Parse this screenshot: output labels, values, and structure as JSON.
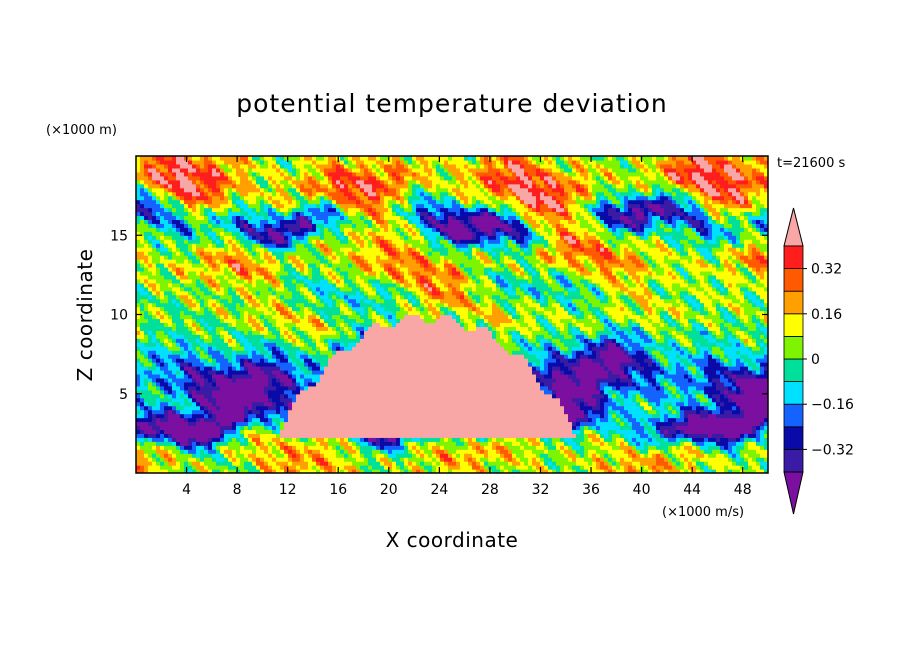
{
  "chart_data": {
    "type": "heatmap",
    "title": "potential temperature deviation",
    "xlabel": "X coordinate",
    "ylabel": "Z coordinate",
    "x_unit": "(×1000 m/s)",
    "y_unit": "(×1000 m)",
    "time_label": "t=21600 s",
    "xlim": [
      0,
      50
    ],
    "ylim": [
      0,
      20
    ],
    "x_ticks": [
      4,
      8,
      12,
      16,
      20,
      24,
      28,
      32,
      36,
      40,
      44,
      48
    ],
    "y_ticks": [
      5,
      10,
      15
    ],
    "colorbar": {
      "levels": [
        -0.4,
        -0.32,
        -0.24,
        -0.16,
        -0.08,
        0,
        0.08,
        0.16,
        0.24,
        0.32,
        0.4
      ],
      "tick_values": [
        -0.32,
        -0.16,
        0,
        0.16,
        0.32
      ],
      "tick_labels": [
        "−0.32",
        "−0.16",
        "0",
        "0.16",
        "0.32"
      ],
      "colors": [
        "#7b0fa0",
        "#3a1ba6",
        "#0a0aa8",
        "#1463ff",
        "#00e0ff",
        "#00e09a",
        "#7ff400",
        "#ffff00",
        "#ffa000",
        "#ff5a00",
        "#ff1e1e",
        "#f8a6a6"
      ]
    },
    "cloud": {
      "value": "> 0.4",
      "x_range": [
        11,
        35
      ],
      "z_range": [
        2.3,
        9.8
      ],
      "top_x": 23,
      "color": "#f8a6a6"
    },
    "field_bands": [
      {
        "z_center": 18.0,
        "z_width": 2.2,
        "amplitude": 0.35
      },
      {
        "z_center": 16.0,
        "z_width": 1.2,
        "amplitude": -0.45
      },
      {
        "z_center": 13.3,
        "z_width": 1.6,
        "amplitude": 0.22
      },
      {
        "z_center": 11.5,
        "z_width": 1.0,
        "amplitude": -0.1
      },
      {
        "z_center": 10.2,
        "z_width": 1.2,
        "amplitude": 0.12
      },
      {
        "z_center": 6.0,
        "z_width": 1.8,
        "amplitude": -0.45
      },
      {
        "z_center": 3.3,
        "z_width": 1.0,
        "amplitude": -0.5
      },
      {
        "z_center": 1.0,
        "z_width": 1.8,
        "amplitude": 0.18
      }
    ]
  }
}
